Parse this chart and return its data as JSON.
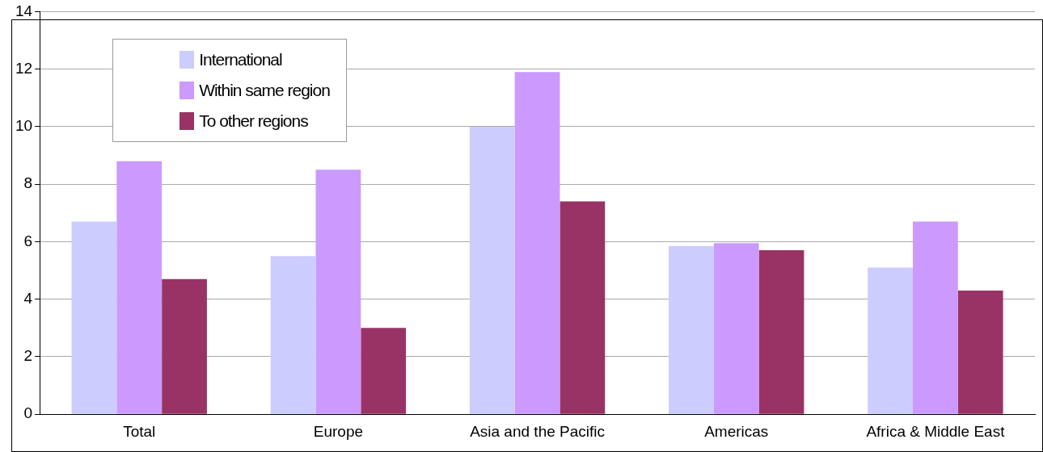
{
  "chart_data": {
    "type": "bar",
    "categories": [
      "Total",
      "Europe",
      "Asia and the Pacific",
      "Americas",
      "Africa & Middle East"
    ],
    "series": [
      {
        "name": "International",
        "color": "#ccccff",
        "values": [
          6.7,
          5.5,
          10.0,
          5.85,
          5.1
        ]
      },
      {
        "name": "Within same region",
        "color": "#cc99ff",
        "values": [
          8.8,
          8.5,
          11.9,
          5.95,
          6.7
        ]
      },
      {
        "name": "To other regions",
        "color": "#993366",
        "values": [
          4.7,
          3.0,
          7.4,
          5.7,
          4.3
        ]
      }
    ],
    "ylim": [
      0,
      14
    ],
    "yticks": [
      0,
      2,
      4,
      6,
      8,
      10,
      12,
      14
    ],
    "grid": "y",
    "legend": "top left"
  }
}
